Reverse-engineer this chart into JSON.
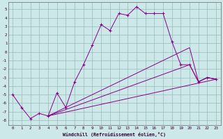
{
  "xlabel": "Windchill (Refroidissement éolien,°C)",
  "bg_color": "#cce8e8",
  "line_color": "#880088",
  "grid_color": "#99bbbb",
  "yticks": [
    5,
    4,
    3,
    2,
    1,
    0,
    -1,
    -2,
    -3,
    -4,
    -5,
    -6,
    -7,
    -8
  ],
  "xticks": [
    0,
    1,
    2,
    3,
    4,
    5,
    6,
    7,
    8,
    9,
    10,
    11,
    12,
    13,
    14,
    15,
    16,
    17,
    18,
    19,
    20,
    21,
    22,
    23
  ],
  "ylim": [
    -8.6,
    5.8
  ],
  "xlim": [
    -0.5,
    23.5
  ],
  "series1": [
    [
      0,
      -5.0
    ],
    [
      1,
      -6.5
    ],
    [
      2,
      -7.8
    ],
    [
      3,
      -7.2
    ],
    [
      4,
      -7.5
    ],
    [
      5,
      -4.8
    ],
    [
      6,
      -6.5
    ],
    [
      7,
      -3.5
    ],
    [
      8,
      -1.5
    ],
    [
      9,
      0.8
    ],
    [
      10,
      3.2
    ],
    [
      11,
      2.5
    ],
    [
      12,
      4.5
    ],
    [
      13,
      4.3
    ],
    [
      14,
      5.3
    ],
    [
      15,
      4.5
    ],
    [
      16,
      4.5
    ],
    [
      17,
      4.5
    ],
    [
      18,
      1.2
    ],
    [
      19,
      -1.5
    ],
    [
      20,
      -1.5
    ],
    [
      21,
      -3.5
    ],
    [
      22,
      -3.0
    ],
    [
      23,
      -3.2
    ]
  ],
  "series2": [
    [
      4,
      -7.5
    ],
    [
      23,
      -3.2
    ]
  ],
  "series3": [
    [
      4,
      -7.5
    ],
    [
      20,
      -1.5
    ],
    [
      21,
      -3.5
    ],
    [
      22,
      -3.0
    ],
    [
      23,
      -3.2
    ]
  ],
  "series4": [
    [
      4,
      -7.5
    ],
    [
      20,
      0.5
    ],
    [
      21,
      -3.5
    ],
    [
      22,
      -3.0
    ],
    [
      23,
      -3.2
    ]
  ]
}
